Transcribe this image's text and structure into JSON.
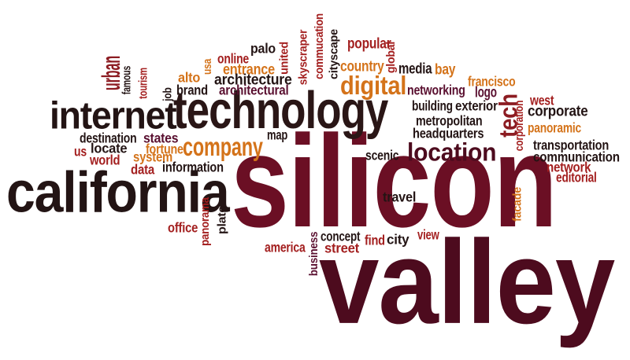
{
  "palette": {
    "dark_maroon": "#3d0a17",
    "maroon": "#6b0f24",
    "crimson": "#a31f1f",
    "orange": "#d4731a",
    "dark": "#231414",
    "plum": "#5a1030"
  },
  "words": [
    {
      "id": "silicon",
      "text": "silicon",
      "color": "#6b0f24",
      "rotate": false
    },
    {
      "id": "valley",
      "text": "valley",
      "color": "#4d0b1e",
      "rotate": false
    },
    {
      "id": "technology",
      "text": "technology",
      "color": "#2a1616",
      "rotate": false
    },
    {
      "id": "california",
      "text": "california",
      "color": "#231414",
      "rotate": false
    },
    {
      "id": "internet",
      "text": "internet",
      "color": "#231414",
      "rotate": false
    },
    {
      "id": "company",
      "text": "company",
      "color": "#d4731a",
      "rotate": false
    },
    {
      "id": "location",
      "text": "location",
      "color": "#4d0b1e",
      "rotate": false
    },
    {
      "id": "digital",
      "text": "digital",
      "color": "#d4731a",
      "rotate": false
    },
    {
      "id": "tech",
      "text": "tech",
      "color": "#8c1c22",
      "rotate": true
    },
    {
      "id": "urban",
      "text": "urban",
      "color": "#8c1c22",
      "rotate": true
    },
    {
      "id": "famous",
      "text": "famous",
      "color": "#231414",
      "rotate": true
    },
    {
      "id": "tourism",
      "text": "tourism",
      "color": "#a31f1f",
      "rotate": true
    },
    {
      "id": "job",
      "text": "job",
      "color": "#231414",
      "rotate": true
    },
    {
      "id": "brand",
      "text": "brand",
      "color": "#231414",
      "rotate": false
    },
    {
      "id": "alto",
      "text": "alto",
      "color": "#d4731a",
      "rotate": false
    },
    {
      "id": "usa",
      "text": "usa",
      "color": "#d4731a",
      "rotate": true
    },
    {
      "id": "online",
      "text": "online",
      "color": "#a31f1f",
      "rotate": false
    },
    {
      "id": "palo",
      "text": "palo",
      "color": "#231414",
      "rotate": false
    },
    {
      "id": "entrance",
      "text": "entrance",
      "color": "#d4731a",
      "rotate": false
    },
    {
      "id": "architecture",
      "text": "architecture",
      "color": "#231414",
      "rotate": false
    },
    {
      "id": "architectural",
      "text": "architectural",
      "color": "#5a1030",
      "rotate": false
    },
    {
      "id": "united",
      "text": "united",
      "color": "#a31f1f",
      "rotate": true
    },
    {
      "id": "skyscraper",
      "text": "skyscraper",
      "color": "#a31f1f",
      "rotate": true
    },
    {
      "id": "commucation",
      "text": "commucation",
      "color": "#a31f1f",
      "rotate": true
    },
    {
      "id": "cityscape",
      "text": "cityscape",
      "color": "#231414",
      "rotate": true
    },
    {
      "id": "popular",
      "text": "popular",
      "color": "#a31f1f",
      "rotate": false
    },
    {
      "id": "country",
      "text": "country",
      "color": "#d4731a",
      "rotate": false
    },
    {
      "id": "global",
      "text": "global",
      "color": "#a31f1f",
      "rotate": true
    },
    {
      "id": "media",
      "text": "media",
      "color": "#231414",
      "rotate": false
    },
    {
      "id": "bay",
      "text": "bay",
      "color": "#d4731a",
      "rotate": false
    },
    {
      "id": "networking",
      "text": "networking",
      "color": "#5a1030",
      "rotate": false
    },
    {
      "id": "francisco",
      "text": "francisco",
      "color": "#d4731a",
      "rotate": false
    },
    {
      "id": "logo",
      "text": "logo",
      "color": "#5a1030",
      "rotate": false
    },
    {
      "id": "building",
      "text": "building",
      "color": "#231414",
      "rotate": false
    },
    {
      "id": "exterior",
      "text": "exterior",
      "color": "#231414",
      "rotate": false
    },
    {
      "id": "metropolitan",
      "text": "metropolitan",
      "color": "#231414",
      "rotate": false
    },
    {
      "id": "headquarters",
      "text": "headquarters",
      "color": "#231414",
      "rotate": false
    },
    {
      "id": "corporation",
      "text": "corporation",
      "color": "#a31f1f",
      "rotate": true
    },
    {
      "id": "west",
      "text": "west",
      "color": "#a31f1f",
      "rotate": false
    },
    {
      "id": "corporate",
      "text": "corporate",
      "color": "#231414",
      "rotate": false
    },
    {
      "id": "panoramic",
      "text": "panoramic",
      "color": "#d4731a",
      "rotate": false
    },
    {
      "id": "transportation",
      "text": "transportation",
      "color": "#231414",
      "rotate": false
    },
    {
      "id": "communication",
      "text": "communication",
      "color": "#231414",
      "rotate": false
    },
    {
      "id": "network",
      "text": "network",
      "color": "#a31f1f",
      "rotate": false
    },
    {
      "id": "editorial",
      "text": "editorial",
      "color": "#a31f1f",
      "rotate": false
    },
    {
      "id": "destination",
      "text": "destination",
      "color": "#231414",
      "rotate": false
    },
    {
      "id": "states",
      "text": "states",
      "color": "#5a1030",
      "rotate": false
    },
    {
      "id": "fortune",
      "text": "fortune",
      "color": "#d4731a",
      "rotate": false
    },
    {
      "id": "system",
      "text": "system",
      "color": "#d4731a",
      "rotate": false
    },
    {
      "id": "us",
      "text": "us",
      "color": "#a31f1f",
      "rotate": false
    },
    {
      "id": "locate",
      "text": "locate",
      "color": "#231414",
      "rotate": false
    },
    {
      "id": "world",
      "text": "world",
      "color": "#a31f1f",
      "rotate": false
    },
    {
      "id": "data",
      "text": "data",
      "color": "#a31f1f",
      "rotate": false
    },
    {
      "id": "information",
      "text": "information",
      "color": "#231414",
      "rotate": false
    },
    {
      "id": "map",
      "text": "map",
      "color": "#231414",
      "rotate": false
    },
    {
      "id": "scenic",
      "text": "scenic",
      "color": "#231414",
      "rotate": false
    },
    {
      "id": "travel",
      "text": "travel",
      "color": "#231414",
      "rotate": false
    },
    {
      "id": "facade",
      "text": "facade",
      "color": "#d4731a",
      "rotate": true
    },
    {
      "id": "office",
      "text": "office",
      "color": "#a31f1f",
      "rotate": false
    },
    {
      "id": "panorama",
      "text": "panorama",
      "color": "#a31f1f",
      "rotate": true
    },
    {
      "id": "plate",
      "text": "plate",
      "color": "#231414",
      "rotate": true
    },
    {
      "id": "america",
      "text": "america",
      "color": "#a31f1f",
      "rotate": false
    },
    {
      "id": "business",
      "text": "business",
      "color": "#5a1030",
      "rotate": true
    },
    {
      "id": "concept",
      "text": "concept",
      "color": "#231414",
      "rotate": false
    },
    {
      "id": "street",
      "text": "street",
      "color": "#a31f1f",
      "rotate": false
    },
    {
      "id": "find",
      "text": "find",
      "color": "#a31f1f",
      "rotate": false
    },
    {
      "id": "city",
      "text": "city",
      "color": "#231414",
      "rotate": false
    },
    {
      "id": "view",
      "text": "view",
      "color": "#a31f1f",
      "rotate": false
    }
  ]
}
